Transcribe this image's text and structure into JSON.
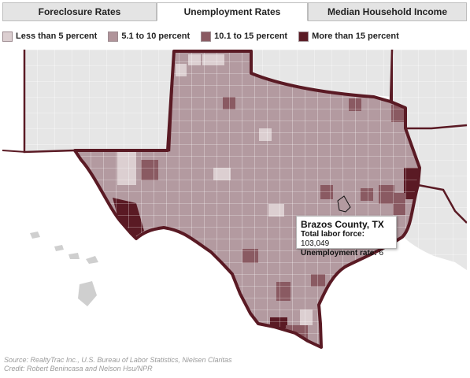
{
  "tabs": [
    {
      "label": "Foreclosure Rates",
      "active": false
    },
    {
      "label": "Unemployment Rates",
      "active": true
    },
    {
      "label": "Median Household Income",
      "active": false
    }
  ],
  "legend": [
    {
      "label": "Less than 5 percent",
      "color": "#dccfd1"
    },
    {
      "label": "5.1 to 10 percent",
      "color": "#b0949a"
    },
    {
      "label": "10.1 to 15 percent",
      "color": "#8a5a62"
    },
    {
      "label": "More than 15 percent",
      "color": "#5a1a24"
    }
  ],
  "tooltip": {
    "title": "Brazos County, TX",
    "labor_force_label": "Total labor force:",
    "labor_force_value": "103,049",
    "unemployment_label": "Unemployment rate:",
    "unemployment_value": "6"
  },
  "credits": {
    "source": "Source: RealtyTrac Inc., U.S. Bureau of Labor Statistics, Nielsen Claritas",
    "credit": "Credit: Robert Benincasa and Nelson Hsu/NPR"
  },
  "map": {
    "land_color": "#e6e6e6",
    "texas_fill": "#b39aa0",
    "border_color": "#5a1a24",
    "county_line": "#ffffff"
  }
}
